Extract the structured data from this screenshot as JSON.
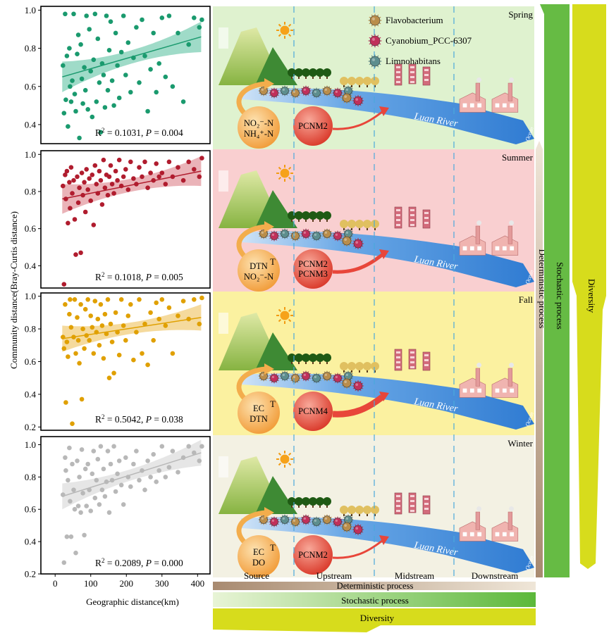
{
  "y_axis_label": "Community distance(Bray-Curtis distance)",
  "x_axis_label": "Geographic distance(km)",
  "x_ticks": [
    "0",
    "100",
    "200",
    "300",
    "400"
  ],
  "seasons": [
    {
      "name": "Spring",
      "point_color": "#1a9a6e",
      "band_color": "#7fcfb6",
      "bg": "#dff2cf",
      "y_ticks": [
        "0.4",
        "0.6",
        "0.8",
        "1.0"
      ],
      "ylim": [
        0.3,
        1.02
      ],
      "fit": {
        "x0": 20,
        "y0": 0.65,
        "x1": 410,
        "y1": 0.86
      },
      "r2_label": "R",
      "r2_value": " = 0.1031, ",
      "p_label": "P",
      "p_value": " = 0.004",
      "drivers": [
        "NO₂⁻-N",
        "NH₄⁺-N"
      ],
      "pcnm": [
        "PCNM2"
      ],
      "arrow_strength": "weak",
      "points": [
        [
          22,
          0.71
        ],
        [
          25,
          0.46
        ],
        [
          28,
          0.98
        ],
        [
          30,
          0.53
        ],
        [
          33,
          0.76
        ],
        [
          36,
          0.39
        ],
        [
          40,
          0.8
        ],
        [
          42,
          0.6
        ],
        [
          45,
          0.52
        ],
        [
          48,
          0.63
        ],
        [
          52,
          0.98
        ],
        [
          55,
          0.56
        ],
        [
          58,
          0.47
        ],
        [
          62,
          0.77
        ],
        [
          65,
          0.87
        ],
        [
          68,
          0.33
        ],
        [
          72,
          0.82
        ],
        [
          75,
          0.64
        ],
        [
          78,
          0.51
        ],
        [
          82,
          0.7
        ],
        [
          85,
          0.58
        ],
        [
          88,
          0.97
        ],
        [
          92,
          0.48
        ],
        [
          96,
          0.9
        ],
        [
          100,
          0.68
        ],
        [
          104,
          0.44
        ],
        [
          108,
          0.74
        ],
        [
          112,
          0.98
        ],
        [
          116,
          0.52
        ],
        [
          120,
          0.85
        ],
        [
          124,
          0.62
        ],
        [
          128,
          0.36
        ],
        [
          132,
          0.72
        ],
        [
          136,
          0.66
        ],
        [
          140,
          0.49
        ],
        [
          144,
          0.97
        ],
        [
          148,
          0.58
        ],
        [
          152,
          0.79
        ],
        [
          156,
          0.94
        ],
        [
          160,
          0.63
        ],
        [
          165,
          0.5
        ],
        [
          170,
          0.88
        ],
        [
          175,
          0.71
        ],
        [
          180,
          0.54
        ],
        [
          186,
          0.78
        ],
        [
          192,
          0.97
        ],
        [
          198,
          0.66
        ],
        [
          205,
          0.83
        ],
        [
          212,
          0.57
        ],
        [
          220,
          0.75
        ],
        [
          228,
          0.91
        ],
        [
          236,
          0.62
        ],
        [
          244,
          0.95
        ],
        [
          252,
          0.76
        ],
        [
          260,
          0.47
        ],
        [
          268,
          0.69
        ],
        [
          276,
          0.88
        ],
        [
          284,
          0.57
        ],
        [
          292,
          0.72
        ],
        [
          300,
          0.96
        ],
        [
          310,
          0.65
        ],
        [
          320,
          0.97
        ],
        [
          330,
          0.6
        ],
        [
          345,
          0.88
        ],
        [
          360,
          0.52
        ],
        [
          375,
          0.82
        ],
        [
          390,
          0.96
        ],
        [
          405,
          0.91
        ],
        [
          412,
          0.95
        ]
      ]
    },
    {
      "name": "Summer",
      "point_color": "#b01c2e",
      "band_color": "#e39aa0",
      "bg": "#f9cfd0",
      "y_ticks": [
        "0.4",
        "0.6",
        "0.8",
        "1.0"
      ],
      "ylim": [
        0.28,
        1.02
      ],
      "fit": {
        "x0": 20,
        "y0": 0.76,
        "x1": 410,
        "y1": 0.91
      },
      "r2_label": "R",
      "r2_value": " = 0.1018, ",
      "p_label": "P",
      "p_value": " = 0.005",
      "drivers": [
        "DTN",
        "NO₂⁻-N"
      ],
      "pcnm": [
        "PCNM2",
        "PCNM3"
      ],
      "arrow_strength": "medium",
      "points": [
        [
          22,
          0.83
        ],
        [
          25,
          0.3
        ],
        [
          28,
          0.89
        ],
        [
          30,
          0.76
        ],
        [
          33,
          0.91
        ],
        [
          36,
          0.63
        ],
        [
          40,
          0.85
        ],
        [
          42,
          0.71
        ],
        [
          45,
          0.93
        ],
        [
          48,
          0.79
        ],
        [
          52,
          0.86
        ],
        [
          55,
          0.65
        ],
        [
          58,
          0.46
        ],
        [
          62,
          0.88
        ],
        [
          65,
          0.74
        ],
        [
          68,
          0.82
        ],
        [
          72,
          0.47
        ],
        [
          75,
          0.9
        ],
        [
          78,
          0.78
        ],
        [
          82,
          0.85
        ],
        [
          85,
          0.69
        ],
        [
          88,
          0.92
        ],
        [
          92,
          0.81
        ],
        [
          96,
          0.87
        ],
        [
          100,
          0.75
        ],
        [
          104,
          0.89
        ],
        [
          108,
          0.62
        ],
        [
          112,
          0.94
        ],
        [
          116,
          0.84
        ],
        [
          120,
          0.79
        ],
        [
          124,
          0.91
        ],
        [
          128,
          0.86
        ],
        [
          132,
          0.73
        ],
        [
          136,
          0.97
        ],
        [
          140,
          0.82
        ],
        [
          144,
          0.89
        ],
        [
          148,
          0.78
        ],
        [
          152,
          0.88
        ],
        [
          156,
          0.94
        ],
        [
          160,
          0.84
        ],
        [
          165,
          0.79
        ],
        [
          170,
          0.91
        ],
        [
          175,
          0.86
        ],
        [
          180,
          0.97
        ],
        [
          186,
          0.83
        ],
        [
          192,
          0.88
        ],
        [
          198,
          0.92
        ],
        [
          205,
          0.81
        ],
        [
          212,
          0.96
        ],
        [
          220,
          0.87
        ],
        [
          228,
          0.84
        ],
        [
          236,
          0.93
        ],
        [
          244,
          0.88
        ],
        [
          252,
          0.96
        ],
        [
          260,
          0.82
        ],
        [
          268,
          0.9
        ],
        [
          276,
          0.86
        ],
        [
          284,
          0.95
        ],
        [
          292,
          0.88
        ],
        [
          300,
          0.9
        ],
        [
          310,
          0.84
        ],
        [
          320,
          0.96
        ],
        [
          330,
          0.88
        ],
        [
          345,
          0.93
        ],
        [
          360,
          0.86
        ],
        [
          375,
          0.96
        ],
        [
          390,
          0.92
        ],
        [
          405,
          0.88
        ],
        [
          412,
          0.98
        ]
      ]
    },
    {
      "name": "Fall",
      "point_color": "#e0a000",
      "band_color": "#f2cd7c",
      "bg": "#fbf1a0",
      "y_ticks": [
        "0.2",
        "0.4",
        "0.6",
        "0.8",
        "1.0"
      ],
      "ylim": [
        0.18,
        1.02
      ],
      "fit": {
        "x0": 20,
        "y0": 0.74,
        "x1": 410,
        "y1": 0.87
      },
      "r2_label": "R",
      "r2_value": " = 0.5042, ",
      "p_label": "P",
      "p_value": " = 0.038",
      "drivers": [
        "EC",
        "DTN"
      ],
      "pcnm": [
        "PCNM4"
      ],
      "arrow_strength": "strong",
      "points": [
        [
          22,
          0.75
        ],
        [
          25,
          0.68
        ],
        [
          28,
          0.95
        ],
        [
          30,
          0.35
        ],
        [
          33,
          0.72
        ],
        [
          36,
          0.63
        ],
        [
          40,
          0.89
        ],
        [
          42,
          0.98
        ],
        [
          45,
          0.81
        ],
        [
          48,
          0.22
        ],
        [
          52,
          0.75
        ],
        [
          55,
          0.98
        ],
        [
          58,
          0.65
        ],
        [
          62,
          0.87
        ],
        [
          65,
          0.73
        ],
        [
          68,
          0.59
        ],
        [
          72,
          0.95
        ],
        [
          75,
          0.37
        ],
        [
          78,
          0.8
        ],
        [
          82,
          0.68
        ],
        [
          85,
          0.92
        ],
        [
          88,
          0.76
        ],
        [
          92,
          0.98
        ],
        [
          96,
          0.73
        ],
        [
          100,
          0.88
        ],
        [
          104,
          0.81
        ],
        [
          108,
          0.65
        ],
        [
          112,
          0.97
        ],
        [
          116,
          0.78
        ],
        [
          120,
          0.86
        ],
        [
          124,
          0.7
        ],
        [
          128,
          0.95
        ],
        [
          132,
          0.82
        ],
        [
          136,
          0.62
        ],
        [
          140,
          0.89
        ],
        [
          144,
          0.77
        ],
        [
          148,
          0.98
        ],
        [
          152,
          0.5
        ],
        [
          156,
          0.83
        ],
        [
          160,
          0.72
        ],
        [
          165,
          0.53
        ],
        [
          170,
          0.9
        ],
        [
          175,
          0.78
        ],
        [
          180,
          0.64
        ],
        [
          186,
          0.98
        ],
        [
          192,
          0.82
        ],
        [
          198,
          0.73
        ],
        [
          205,
          0.88
        ],
        [
          212,
          0.95
        ],
        [
          220,
          0.61
        ],
        [
          228,
          0.78
        ],
        [
          236,
          0.98
        ],
        [
          244,
          0.65
        ],
        [
          252,
          0.83
        ],
        [
          260,
          0.58
        ],
        [
          268,
          0.9
        ],
        [
          276,
          0.73
        ],
        [
          284,
          0.96
        ],
        [
          292,
          0.86
        ],
        [
          300,
          0.98
        ],
        [
          310,
          0.82
        ],
        [
          320,
          0.93
        ],
        [
          330,
          0.65
        ],
        [
          345,
          0.88
        ],
        [
          360,
          0.97
        ],
        [
          375,
          0.86
        ],
        [
          390,
          0.98
        ],
        [
          405,
          0.83
        ],
        [
          412,
          0.99
        ]
      ]
    },
    {
      "name": "Winter",
      "point_color": "#b8b8b8",
      "band_color": "#dedede",
      "bg": "#f3f1e3",
      "y_ticks": [
        "0.2",
        "0.4",
        "0.6",
        "0.8",
        "1.0"
      ],
      "ylim": [
        0.2,
        1.05
      ],
      "fit": {
        "x0": 20,
        "y0": 0.68,
        "x1": 410,
        "y1": 0.95
      },
      "r2_label": "R",
      "r2_value": " = 0.2089, ",
      "p_label": "P",
      "p_value": " = 0.000",
      "drivers": [
        "EC",
        "DO"
      ],
      "pcnm": [
        "PCNM2"
      ],
      "arrow_strength": "weak",
      "points": [
        [
          22,
          0.69
        ],
        [
          25,
          0.27
        ],
        [
          28,
          0.92
        ],
        [
          30,
          0.84
        ],
        [
          33,
          0.43
        ],
        [
          36,
          0.78
        ],
        [
          40,
          0.98
        ],
        [
          42,
          0.65
        ],
        [
          45,
          0.43
        ],
        [
          48,
          0.88
        ],
        [
          52,
          0.72
        ],
        [
          55,
          0.6
        ],
        [
          58,
          0.33
        ],
        [
          62,
          0.9
        ],
        [
          65,
          0.62
        ],
        [
          68,
          0.8
        ],
        [
          72,
          0.58
        ],
        [
          75,
          0.97
        ],
        [
          78,
          0.7
        ],
        [
          82,
          0.44
        ],
        [
          85,
          0.85
        ],
        [
          88,
          0.62
        ],
        [
          92,
          0.88
        ],
        [
          96,
          0.72
        ],
        [
          100,
          0.59
        ],
        [
          104,
          0.82
        ],
        [
          108,
          0.96
        ],
        [
          112,
          0.67
        ],
        [
          116,
          0.78
        ],
        [
          120,
          0.91
        ],
        [
          124,
          0.63
        ],
        [
          128,
          0.99
        ],
        [
          132,
          0.72
        ],
        [
          136,
          0.85
        ],
        [
          140,
          0.68
        ],
        [
          144,
          0.77
        ],
        [
          148,
          0.96
        ],
        [
          152,
          0.58
        ],
        [
          156,
          0.88
        ],
        [
          160,
          0.78
        ],
        [
          165,
          0.99
        ],
        [
          170,
          0.71
        ],
        [
          175,
          0.82
        ],
        [
          180,
          0.9
        ],
        [
          186,
          0.75
        ],
        [
          192,
          0.63
        ],
        [
          198,
          0.92
        ],
        [
          205,
          0.8
        ],
        [
          212,
          0.74
        ],
        [
          220,
          0.88
        ],
        [
          228,
          0.96
        ],
        [
          236,
          0.78
        ],
        [
          244,
          0.84
        ],
        [
          252,
          0.72
        ],
        [
          260,
          0.9
        ],
        [
          268,
          0.8
        ],
        [
          276,
          0.94
        ],
        [
          284,
          0.77
        ],
        [
          292,
          0.84
        ],
        [
          300,
          0.99
        ],
        [
          310,
          0.8
        ],
        [
          320,
          0.86
        ],
        [
          330,
          0.96
        ],
        [
          345,
          0.83
        ],
        [
          360,
          0.92
        ],
        [
          375,
          0.99
        ],
        [
          390,
          0.95
        ],
        [
          405,
          0.9
        ],
        [
          412,
          0.99
        ]
      ]
    }
  ],
  "legend": {
    "items": [
      {
        "label": "Flavobacterium",
        "color": "#b98d4b"
      },
      {
        "label": "Cyanobium_PCC-6307",
        "color": "#c0305b"
      },
      {
        "label": "Limnohabitans",
        "color": "#5d8e8e"
      }
    ]
  },
  "river_label": "Luan River",
  "ocean_label": "Ocean",
  "temperature_mark": "T",
  "reaches": [
    "Source",
    "Upstream",
    "Midstream",
    "Downstream"
  ],
  "gradients": {
    "deterministic": "Deterministic process",
    "stochastic": "Stochastic process",
    "diversity": "Diversity"
  },
  "colors": {
    "deterministic": "#b9a28a",
    "stochastic": "#66bb44",
    "diversity": "#d7dc1c",
    "river": "#3f87d8",
    "driver_circle": "#f3ad4c",
    "pcnm_circle": "#e8463a",
    "mountain": "#9fc24a",
    "factory": "#e8a0a0",
    "building": "#d26a7a"
  }
}
